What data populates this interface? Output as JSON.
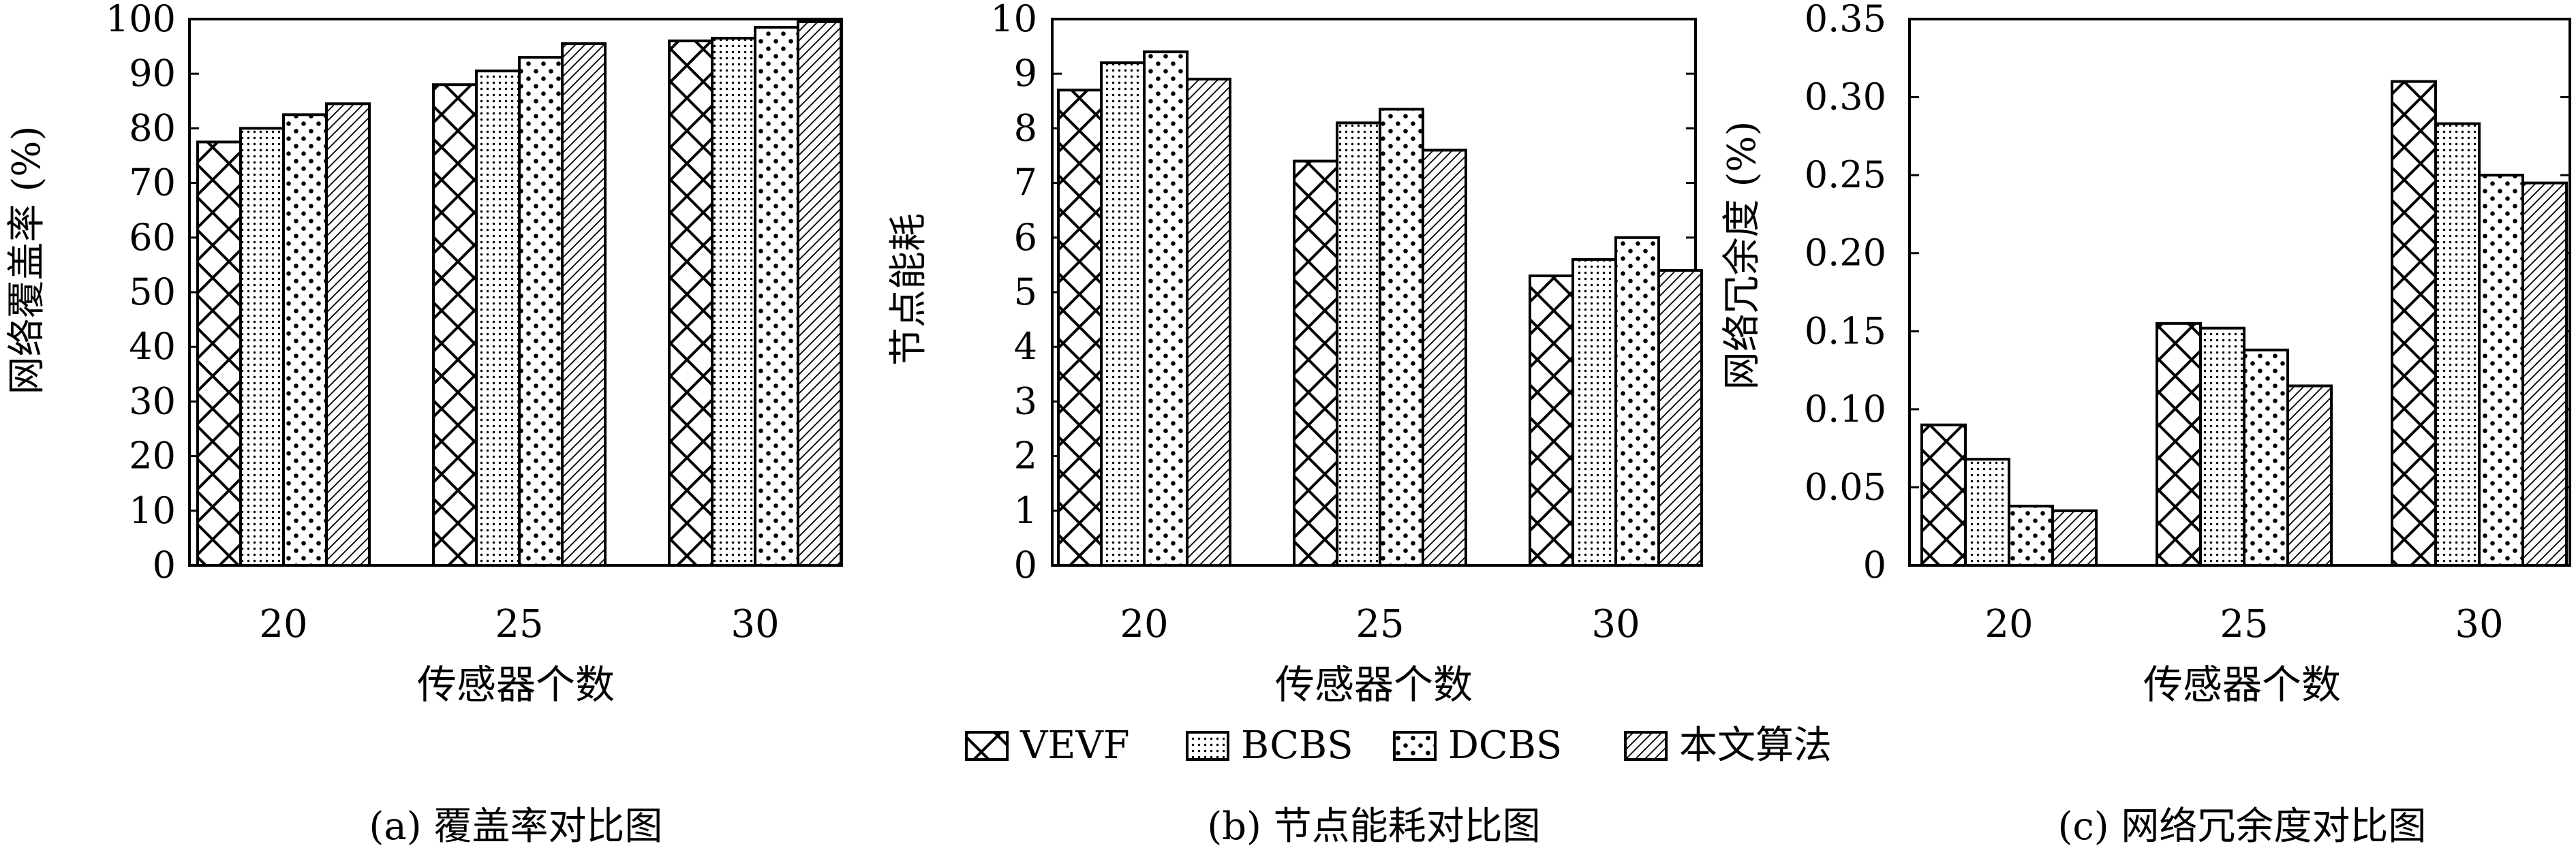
{
  "chart_data": [
    {
      "type": "bar",
      "caption": "(a) 覆盖率对比图",
      "xlabel": "传感器个数",
      "ylabel": "网络覆盖率 (%)",
      "categories": [
        "20",
        "25",
        "30"
      ],
      "ylim": [
        0,
        100
      ],
      "yticks": [
        "0",
        "10",
        "20",
        "30",
        "40",
        "50",
        "60",
        "70",
        "80",
        "90",
        "100"
      ],
      "series": [
        {
          "name": "VEVF",
          "values": [
            77.5,
            88,
            96
          ]
        },
        {
          "name": "BCBS",
          "values": [
            80,
            90.5,
            96.5
          ]
        },
        {
          "name": "DCBS",
          "values": [
            82.5,
            93,
            98.5
          ]
        },
        {
          "name": "本文算法",
          "values": [
            84.5,
            95.5,
            99.5
          ]
        }
      ]
    },
    {
      "type": "bar",
      "caption": "(b) 节点能耗对比图",
      "xlabel": "传感器个数",
      "ylabel": "节点能耗",
      "categories": [
        "20",
        "25",
        "30"
      ],
      "ylim": [
        0,
        10
      ],
      "yticks": [
        "0",
        "1",
        "2",
        "3",
        "4",
        "5",
        "6",
        "7",
        "8",
        "9",
        "10"
      ],
      "series": [
        {
          "name": "VEVF",
          "values": [
            8.7,
            7.4,
            5.3
          ]
        },
        {
          "name": "BCBS",
          "values": [
            9.2,
            8.1,
            5.6
          ]
        },
        {
          "name": "DCBS",
          "values": [
            9.4,
            8.35,
            6.0
          ]
        },
        {
          "name": "本文算法",
          "values": [
            8.9,
            7.6,
            5.4
          ]
        }
      ]
    },
    {
      "type": "bar",
      "caption": "(c) 网络冗余度对比图",
      "xlabel": "传感器个数",
      "ylabel": "网络冗余度 (%)",
      "categories": [
        "20",
        "25",
        "30"
      ],
      "ylim": [
        0,
        0.35
      ],
      "yticks": [
        "0",
        "0.05",
        "0.10",
        "0.15",
        "0.20",
        "0.25",
        "0.30",
        "0.35"
      ],
      "series": [
        {
          "name": "VEVF",
          "values": [
            0.09,
            0.155,
            0.31
          ]
        },
        {
          "name": "BCBS",
          "values": [
            0.068,
            0.152,
            0.283
          ]
        },
        {
          "name": "DCBS",
          "values": [
            0.038,
            0.138,
            0.25
          ]
        },
        {
          "name": "本文算法",
          "values": [
            0.035,
            0.115,
            0.245
          ]
        }
      ]
    }
  ],
  "legend": {
    "placement": "bottom-center",
    "items": [
      {
        "name": "VEVF",
        "pattern": "crosshatch"
      },
      {
        "name": "BCBS",
        "pattern": "fine-dots"
      },
      {
        "name": "DCBS",
        "pattern": "dots"
      },
      {
        "name": "本文算法",
        "pattern": "diagonal-lines"
      }
    ]
  }
}
